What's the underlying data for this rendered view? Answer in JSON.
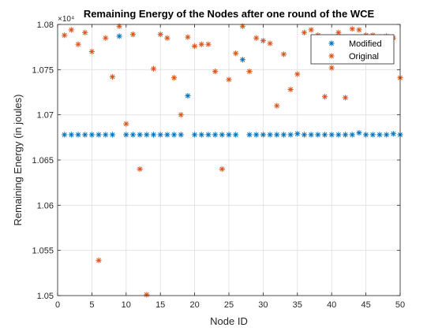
{
  "chart_data": {
    "type": "scatter",
    "title": "Remaining Energy of the Nodes after one round of the WCE",
    "xlabel": "Node ID",
    "ylabel": "Remaining Energy (in joules)",
    "y_multiplier_label": "×10⁴",
    "xlim": [
      0,
      50
    ],
    "ylim": [
      1.05,
      1.08
    ],
    "x_ticks": [
      "0",
      "5",
      "10",
      "15",
      "20",
      "25",
      "30",
      "35",
      "40",
      "45",
      "50"
    ],
    "y_ticks": [
      "1.05",
      "1.055",
      "1.06",
      "1.065",
      "1.07",
      "1.075",
      "1.08"
    ],
    "grid": true,
    "legend_position": "top-right",
    "marker": "asterisk",
    "series": [
      {
        "name": "Modified",
        "color": "#0072BD",
        "x": [
          1,
          2,
          3,
          4,
          5,
          6,
          7,
          8,
          9,
          10,
          11,
          12,
          13,
          14,
          15,
          16,
          17,
          18,
          19,
          20,
          21,
          22,
          23,
          24,
          25,
          26,
          27,
          28,
          29,
          30,
          31,
          32,
          33,
          34,
          35,
          36,
          37,
          38,
          39,
          40,
          41,
          42,
          43,
          44,
          45,
          46,
          47,
          48,
          49,
          50
        ],
        "values": [
          1.0678,
          1.0678,
          1.0678,
          1.0678,
          1.0678,
          1.0678,
          1.0678,
          1.0678,
          1.0787,
          1.0678,
          1.0678,
          1.0678,
          1.0678,
          1.0678,
          1.0678,
          1.0678,
          1.0678,
          1.0678,
          1.0721,
          1.0678,
          1.0678,
          1.0678,
          1.0678,
          1.0678,
          1.0678,
          1.0678,
          1.0761,
          1.0678,
          1.0678,
          1.0678,
          1.0678,
          1.0678,
          1.0678,
          1.0678,
          1.0679,
          1.0678,
          1.0678,
          1.0678,
          1.0678,
          1.0678,
          1.0678,
          1.0678,
          1.0678,
          1.068,
          1.0678,
          1.0678,
          1.0678,
          1.0678,
          1.0679,
          1.0678
        ]
      },
      {
        "name": "Original",
        "color": "#D95319",
        "x": [
          1,
          2,
          3,
          4,
          5,
          6,
          7,
          8,
          9,
          10,
          11,
          12,
          13,
          14,
          15,
          16,
          17,
          18,
          19,
          20,
          21,
          22,
          23,
          24,
          25,
          26,
          27,
          28,
          29,
          30,
          31,
          32,
          33,
          34,
          35,
          36,
          37,
          38,
          39,
          40,
          41,
          42,
          43,
          44,
          45,
          46,
          47,
          48,
          49,
          50
        ],
        "values": [
          1.0788,
          1.0794,
          1.0778,
          1.0791,
          1.077,
          1.0539,
          1.0785,
          1.0742,
          1.0798,
          1.069,
          1.0789,
          1.064,
          1.0501,
          1.0751,
          1.0789,
          1.0785,
          1.0741,
          1.07,
          1.0786,
          1.0776,
          1.0778,
          1.0778,
          1.0748,
          1.064,
          1.0739,
          1.0768,
          1.0798,
          1.0748,
          1.0785,
          1.0782,
          1.0779,
          1.071,
          1.0767,
          1.0728,
          1.0745,
          1.0791,
          1.0794,
          1.0788,
          1.072,
          1.0752,
          1.0791,
          1.0719,
          1.0795,
          1.0794,
          1.0788,
          1.0788,
          1.0786,
          1.0787,
          1.0785,
          1.0741
        ]
      }
    ]
  }
}
